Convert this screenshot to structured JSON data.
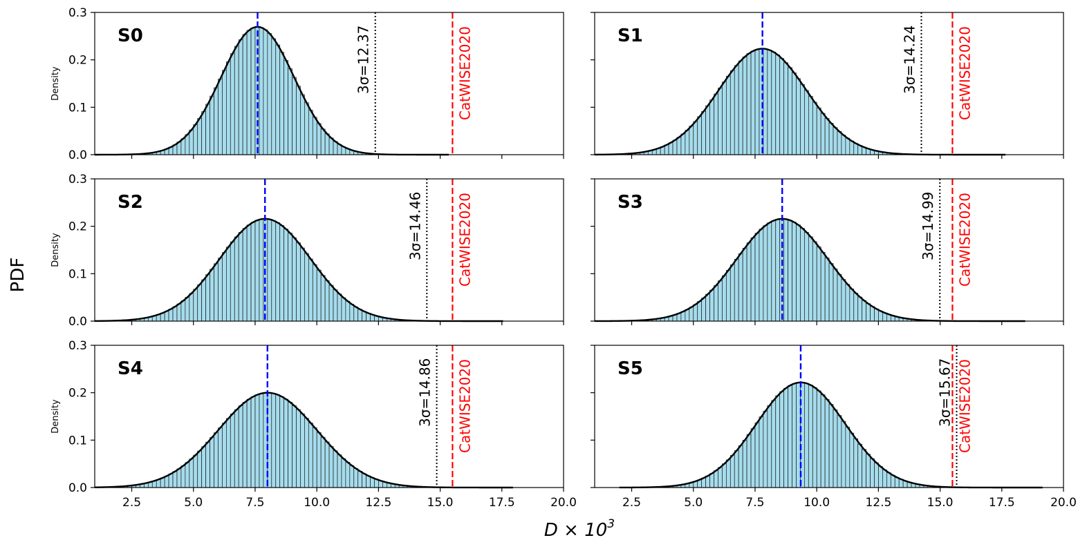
{
  "figure": {
    "ylabel": "PDF",
    "xlabel_main": "D × 10",
    "xlabel_exp": "3"
  },
  "chart_data": {
    "type": "histogram",
    "xlim": [
      1.0,
      20.0
    ],
    "ylim": [
      0.0,
      0.3
    ],
    "xticks": [
      2.5,
      5.0,
      7.5,
      10.0,
      12.5,
      15.0,
      17.5,
      20.0
    ],
    "xtick_labels": [
      "2.5",
      "5.0",
      "7.5",
      "10.0",
      "12.5",
      "15.0",
      "17.5",
      "20.0"
    ],
    "yticks": [
      0.0,
      0.1,
      0.2,
      0.3
    ],
    "ytick_labels": [
      "0.0",
      "0.1",
      "0.2",
      "0.3"
    ],
    "subplot_ylabel": "Density",
    "reference_label": "CatWISE2020",
    "reference_x": 15.5,
    "colors": {
      "bar_fill": "#a6dcec",
      "bar_edge": "#1a1a1a",
      "kde": "#000000",
      "mean_line": "#0000ff",
      "reference_line": "#ff0000",
      "sigma_line": "#000000"
    },
    "panels": [
      {
        "title": "S0",
        "mean": 7.6,
        "sd": 1.48,
        "skew": 0.0,
        "sigma_label": "3σ=12.37",
        "sigma_x": 12.37,
        "xrange": [
          1.0,
          15.4
        ]
      },
      {
        "title": "S1",
        "mean": 7.8,
        "sd": 1.85,
        "skew": 0.35,
        "sigma_label": "3σ=14.24",
        "sigma_x": 14.24,
        "xrange": [
          1.0,
          17.7
        ]
      },
      {
        "title": "S2",
        "mean": 7.9,
        "sd": 1.9,
        "skew": 0.3,
        "sigma_label": "3σ=14.46",
        "sigma_x": 14.46,
        "xrange": [
          1.0,
          17.6
        ]
      },
      {
        "title": "S3",
        "mean": 8.6,
        "sd": 1.9,
        "skew": 0.3,
        "sigma_label": "3σ=14.99",
        "sigma_x": 14.99,
        "xrange": [
          1.0,
          18.5
        ]
      },
      {
        "title": "S4",
        "mean": 8.0,
        "sd": 2.05,
        "skew": 0.3,
        "sigma_label": "3σ=14.86",
        "sigma_x": 14.86,
        "xrange": [
          1.0,
          18.0
        ]
      },
      {
        "title": "S5",
        "mean": 9.35,
        "sd": 1.85,
        "skew": 0.3,
        "sigma_label": "3σ=15.67",
        "sigma_x": 15.67,
        "xrange": [
          2.0,
          19.2
        ]
      }
    ]
  }
}
